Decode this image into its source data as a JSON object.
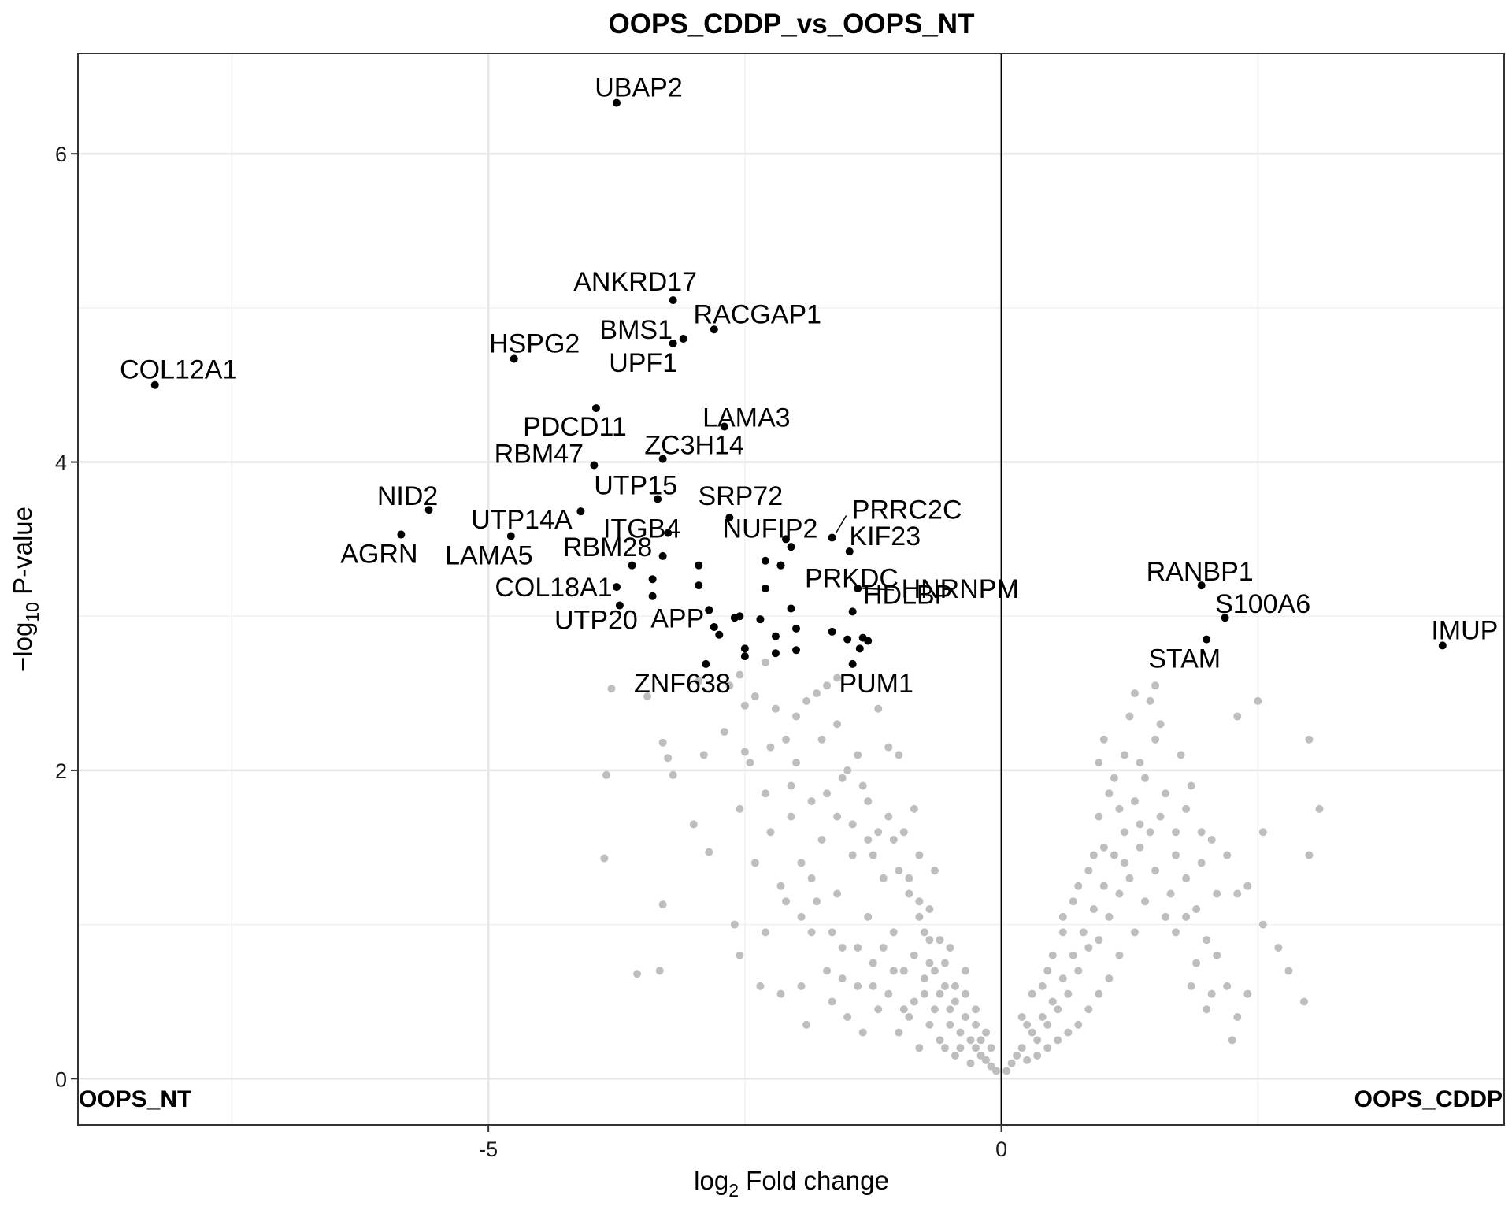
{
  "chart_data": {
    "type": "scatter",
    "title": "OOPS_CDDP_vs_OOPS_NT",
    "xlabel_prefix": "log",
    "xlabel_sub": "2",
    "xlabel_suffix": " Fold change",
    "ylabel_prefix": "−log",
    "ylabel_sub": "10",
    "ylabel_suffix": " P-value",
    "xlim": [
      -9.0,
      4.9
    ],
    "ylim": [
      -0.3,
      6.65
    ],
    "x_ticks": [
      -5,
      0
    ],
    "y_ticks": [
      0,
      2,
      4,
      6
    ],
    "x_tick_labels": [
      "-5",
      "0"
    ],
    "y_tick_labels": [
      "0",
      "2",
      "4",
      "6"
    ],
    "grid": true,
    "vline_x": 0,
    "corner_left": "OOPS_NT",
    "corner_right": "OOPS_CDDP",
    "colors": {
      "significant": "#000000",
      "background": "#bebebe"
    },
    "labeled_points": [
      {
        "label": "UBAP2",
        "x": -3.75,
        "y": 6.33
      },
      {
        "label": "ANKRD17",
        "x": -3.2,
        "y": 5.05
      },
      {
        "label": "RACGAP1",
        "x": -2.8,
        "y": 4.86
      },
      {
        "label": "BMS1",
        "x": -3.1,
        "y": 4.8
      },
      {
        "label": "UPF1",
        "x": -3.2,
        "y": 4.77
      },
      {
        "label": "HSPG2",
        "x": -4.75,
        "y": 4.67
      },
      {
        "label": "COL12A1",
        "x": -8.25,
        "y": 4.5
      },
      {
        "label": "PDCD11",
        "x": -3.95,
        "y": 4.35
      },
      {
        "label": "LAMA3",
        "x": -2.7,
        "y": 4.23
      },
      {
        "label": "ZC3H14",
        "x": -3.3,
        "y": 4.02
      },
      {
        "label": "RBM47",
        "x": -3.97,
        "y": 3.98
      },
      {
        "label": "UTP15",
        "x": -3.35,
        "y": 3.76
      },
      {
        "label": "NID2",
        "x": -5.58,
        "y": 3.69
      },
      {
        "label": "UTP14A",
        "x": -4.1,
        "y": 3.68
      },
      {
        "label": "SRP72",
        "x": -2.65,
        "y": 3.64
      },
      {
        "label": "ITGB4",
        "x": -3.25,
        "y": 3.54
      },
      {
        "label": "PRRC2C",
        "x": -1.65,
        "y": 3.51
      },
      {
        "label": "AGRN",
        "x": -5.85,
        "y": 3.53
      },
      {
        "label": "LAMA5",
        "x": -4.78,
        "y": 3.52
      },
      {
        "label": "NUFIP2",
        "x": -2.1,
        "y": 3.5
      },
      {
        "label": "KIF23",
        "x": -1.48,
        "y": 3.42
      },
      {
        "label": "RBM28",
        "x": -3.3,
        "y": 3.39
      },
      {
        "label": "PRKDC",
        "x": -2.15,
        "y": 3.33
      },
      {
        "label": "COL18A1",
        "x": -3.75,
        "y": 3.19
      },
      {
        "label": "HNRNPM",
        "x": -1.4,
        "y": 3.18
      },
      {
        "label": "UTP20",
        "x": -3.72,
        "y": 3.07
      },
      {
        "label": "APP",
        "x": -2.85,
        "y": 3.04
      },
      {
        "label": "HDLBP",
        "x": -1.45,
        "y": 3.03
      },
      {
        "label": "ZNF638",
        "x": -2.88,
        "y": 2.69
      },
      {
        "label": "PUM1",
        "x": -1.45,
        "y": 2.69
      },
      {
        "label": "RANBP1",
        "x": 1.95,
        "y": 3.2
      },
      {
        "label": "S100A6",
        "x": 2.18,
        "y": 2.99
      },
      {
        "label": "STAM",
        "x": 2.0,
        "y": 2.85
      },
      {
        "label": "IMUP",
        "x": 4.3,
        "y": 2.81
      }
    ],
    "significant_points": [
      [
        -3.6,
        3.33
      ],
      [
        -2.95,
        3.33
      ],
      [
        -3.4,
        3.24
      ],
      [
        -2.95,
        3.2
      ],
      [
        -2.3,
        3.18
      ],
      [
        -3.4,
        3.13
      ],
      [
        -2.3,
        3.36
      ],
      [
        -2.15,
        3.33
      ],
      [
        -2.05,
        3.45
      ],
      [
        -2.85,
        3.04
      ],
      [
        -2.55,
        3.0
      ],
      [
        -2.6,
        2.99
      ],
      [
        -2.35,
        2.98
      ],
      [
        -2.05,
        3.05
      ],
      [
        -1.65,
        2.9
      ],
      [
        -2.8,
        2.93
      ],
      [
        -2.75,
        2.88
      ],
      [
        -2.0,
        2.92
      ],
      [
        -2.2,
        2.87
      ],
      [
        -1.35,
        2.86
      ],
      [
        -1.3,
        2.84
      ],
      [
        -1.5,
        2.85
      ],
      [
        -2.5,
        2.79
      ],
      [
        -2.0,
        2.78
      ],
      [
        -2.2,
        2.76
      ],
      [
        -2.5,
        2.74
      ],
      [
        -1.38,
        2.79
      ]
    ],
    "background_points": [
      [
        -3.8,
        2.53
      ],
      [
        -3.85,
        1.97
      ],
      [
        -3.87,
        1.43
      ],
      [
        -3.3,
        2.18
      ],
      [
        -3.25,
        2.08
      ],
      [
        -3.2,
        1.97
      ],
      [
        -3.3,
        1.13
      ],
      [
        -3.33,
        0.7
      ],
      [
        -3.55,
        0.68
      ],
      [
        -3.0,
        1.65
      ],
      [
        -2.85,
        1.47
      ],
      [
        -2.5,
        2.42
      ],
      [
        -2.4,
        2.48
      ],
      [
        -2.55,
        2.62
      ],
      [
        -2.5,
        2.12
      ],
      [
        -2.55,
        1.75
      ],
      [
        -2.3,
        1.85
      ],
      [
        -2.6,
        1.0
      ],
      [
        -2.55,
        0.8
      ],
      [
        -2.35,
        0.6
      ],
      [
        -2.2,
        2.4
      ],
      [
        -2.1,
        2.2
      ],
      [
        -2.0,
        2.35
      ],
      [
        -2.05,
        1.9
      ],
      [
        -1.95,
        1.4
      ],
      [
        -2.15,
        0.55
      ],
      [
        -1.95,
        0.6
      ],
      [
        -1.8,
        2.5
      ],
      [
        -1.7,
        2.55
      ],
      [
        -1.75,
        2.2
      ],
      [
        -1.6,
        2.3
      ],
      [
        -1.5,
        2.0
      ],
      [
        -1.4,
        2.1
      ],
      [
        -1.3,
        1.8
      ],
      [
        -1.2,
        2.4
      ],
      [
        -1.1,
        2.15
      ],
      [
        -1.0,
        2.1
      ],
      [
        -0.95,
        1.6
      ],
      [
        -0.9,
        1.2
      ],
      [
        -0.8,
        1.45
      ],
      [
        -0.7,
        1.1
      ],
      [
        -0.6,
        0.9
      ],
      [
        -1.75,
        1.55
      ],
      [
        -1.6,
        1.2
      ],
      [
        -1.45,
        1.45
      ],
      [
        -1.3,
        1.05
      ],
      [
        -1.15,
        1.3
      ],
      [
        -1.05,
        0.95
      ],
      [
        -1.85,
        0.95
      ],
      [
        -1.7,
        0.7
      ],
      [
        -1.55,
        0.85
      ],
      [
        -1.4,
        0.6
      ],
      [
        -1.25,
        0.75
      ],
      [
        -1.1,
        0.55
      ],
      [
        -0.95,
        0.7
      ],
      [
        -0.85,
        0.5
      ],
      [
        -0.75,
        0.65
      ],
      [
        -0.65,
        0.45
      ],
      [
        -0.55,
        0.6
      ],
      [
        -0.5,
        0.35
      ],
      [
        -0.45,
        0.5
      ],
      [
        -0.4,
        0.3
      ],
      [
        -0.35,
        0.4
      ],
      [
        -0.3,
        0.25
      ],
      [
        -0.25,
        0.2
      ],
      [
        -0.2,
        0.15
      ],
      [
        -0.15,
        0.12
      ],
      [
        -0.1,
        0.08
      ],
      [
        -0.05,
        0.05
      ],
      [
        -0.6,
        0.25
      ],
      [
        -0.7,
        0.35
      ],
      [
        -0.8,
        0.2
      ],
      [
        -0.9,
        0.4
      ],
      [
        -1.0,
        0.3
      ],
      [
        -1.2,
        0.45
      ],
      [
        -1.35,
        0.3
      ],
      [
        -1.5,
        0.4
      ],
      [
        -1.65,
        0.5
      ],
      [
        -1.9,
        0.35
      ],
      [
        -0.35,
        0.7
      ],
      [
        -0.5,
        0.85
      ],
      [
        -0.65,
        1.35
      ],
      [
        -0.75,
        0.95
      ],
      [
        -0.85,
        1.75
      ],
      [
        -1.1,
        1.7
      ],
      [
        -1.3,
        1.55
      ],
      [
        -1.6,
        1.7
      ],
      [
        -1.85,
        1.3
      ],
      [
        -2.1,
        1.15
      ],
      [
        -2.3,
        0.95
      ],
      [
        -0.25,
        0.45
      ],
      [
        -0.15,
        0.3
      ],
      [
        -0.45,
        0.15
      ],
      [
        -0.55,
        0.2
      ],
      [
        -0.3,
        0.1
      ],
      [
        0.05,
        0.05
      ],
      [
        0.1,
        0.1
      ],
      [
        0.15,
        0.15
      ],
      [
        0.2,
        0.2
      ],
      [
        0.25,
        0.12
      ],
      [
        0.3,
        0.3
      ],
      [
        0.35,
        0.25
      ],
      [
        0.4,
        0.4
      ],
      [
        0.45,
        0.35
      ],
      [
        0.5,
        0.5
      ],
      [
        0.55,
        0.45
      ],
      [
        0.6,
        0.65
      ],
      [
        0.65,
        0.55
      ],
      [
        0.7,
        0.8
      ],
      [
        0.75,
        0.7
      ],
      [
        0.8,
        0.95
      ],
      [
        0.85,
        0.85
      ],
      [
        0.9,
        1.1
      ],
      [
        0.95,
        0.9
      ],
      [
        1.0,
        1.25
      ],
      [
        1.05,
        1.05
      ],
      [
        1.1,
        1.45
      ],
      [
        1.15,
        1.2
      ],
      [
        1.2,
        1.6
      ],
      [
        1.25,
        1.3
      ],
      [
        1.3,
        1.8
      ],
      [
        1.35,
        1.5
      ],
      [
        1.4,
        1.95
      ],
      [
        1.45,
        1.6
      ],
      [
        1.5,
        2.2
      ],
      [
        1.55,
        1.7
      ],
      [
        1.6,
        1.85
      ],
      [
        1.7,
        1.45
      ],
      [
        1.8,
        1.3
      ],
      [
        1.9,
        1.1
      ],
      [
        2.0,
        0.9
      ],
      [
        2.1,
        0.8
      ],
      [
        2.2,
        0.6
      ],
      [
        2.3,
        0.4
      ],
      [
        0.95,
        1.7
      ],
      [
        1.1,
        1.95
      ],
      [
        1.2,
        2.1
      ],
      [
        1.25,
        2.35
      ],
      [
        1.3,
        2.5
      ],
      [
        1.45,
        2.45
      ],
      [
        1.5,
        2.55
      ],
      [
        1.0,
        2.2
      ],
      [
        0.95,
        2.05
      ],
      [
        1.75,
        2.1
      ],
      [
        1.85,
        1.9
      ],
      [
        1.95,
        1.6
      ],
      [
        2.05,
        1.55
      ],
      [
        2.2,
        1.45
      ],
      [
        2.3,
        1.2
      ],
      [
        2.4,
        1.25
      ],
      [
        2.55,
        1.0
      ],
      [
        2.7,
        0.85
      ],
      [
        2.8,
        0.7
      ],
      [
        2.95,
        0.5
      ],
      [
        2.3,
        2.35
      ],
      [
        2.5,
        2.45
      ],
      [
        3.0,
        2.2
      ],
      [
        3.1,
        1.75
      ],
      [
        3.0,
        1.45
      ],
      [
        2.55,
        1.6
      ],
      [
        2.25,
        0.25
      ],
      [
        2.4,
        0.55
      ],
      [
        2.0,
        0.45
      ],
      [
        1.85,
        0.6
      ],
      [
        1.7,
        0.95
      ],
      [
        1.6,
        1.05
      ],
      [
        1.4,
        1.15
      ],
      [
        1.3,
        0.95
      ],
      [
        1.15,
        0.8
      ],
      [
        1.05,
        0.65
      ],
      [
        0.95,
        0.55
      ],
      [
        0.85,
        0.45
      ],
      [
        0.75,
        0.35
      ],
      [
        0.65,
        0.3
      ],
      [
        0.55,
        0.25
      ],
      [
        0.45,
        0.2
      ],
      [
        0.35,
        0.15
      ],
      [
        0.3,
        0.55
      ],
      [
        0.45,
        0.7
      ],
      [
        0.6,
        0.95
      ],
      [
        0.7,
        1.15
      ],
      [
        0.85,
        1.35
      ],
      [
        1.0,
        1.5
      ],
      [
        1.15,
        1.75
      ],
      [
        1.35,
        2.05
      ],
      [
        1.55,
        2.3
      ],
      [
        1.7,
        1.6
      ],
      [
        1.8,
        1.75
      ],
      [
        1.95,
        1.4
      ],
      [
        2.1,
        1.2
      ],
      [
        0.2,
        0.4
      ],
      [
        0.25,
        0.35
      ],
      [
        0.4,
        0.6
      ],
      [
        0.5,
        0.8
      ],
      [
        0.6,
        1.05
      ],
      [
        0.75,
        1.25
      ],
      [
        0.9,
        1.45
      ],
      [
        1.05,
        1.85
      ],
      [
        1.2,
        1.4
      ],
      [
        1.35,
        1.65
      ],
      [
        1.5,
        1.35
      ],
      [
        1.65,
        1.2
      ],
      [
        1.8,
        1.05
      ],
      [
        1.9,
        0.75
      ],
      [
        2.05,
        0.55
      ],
      [
        -3.45,
        2.48
      ],
      [
        -2.95,
        2.58
      ],
      [
        -2.65,
        2.55
      ],
      [
        -2.3,
        2.7
      ],
      [
        -1.6,
        2.6
      ],
      [
        -1.9,
        2.45
      ],
      [
        -2.05,
        1.7
      ],
      [
        -1.85,
        1.8
      ],
      [
        -1.45,
        1.65
      ],
      [
        -1.25,
        1.45
      ],
      [
        -1.0,
        1.35
      ],
      [
        -0.8,
        1.05
      ],
      [
        -0.7,
        0.75
      ],
      [
        -0.6,
        0.55
      ],
      [
        -0.5,
        0.45
      ],
      [
        -0.4,
        0.2
      ],
      [
        -0.35,
        0.55
      ],
      [
        -0.25,
        0.35
      ],
      [
        -0.2,
        0.25
      ],
      [
        -0.1,
        0.2
      ],
      [
        -2.4,
        1.4
      ],
      [
        -2.25,
        1.6
      ],
      [
        -2.15,
        1.25
      ],
      [
        -1.95,
        1.05
      ],
      [
        -1.8,
        1.15
      ],
      [
        -1.65,
        0.95
      ],
      [
        -1.55,
        0.65
      ],
      [
        -1.4,
        0.85
      ],
      [
        -1.25,
        0.6
      ],
      [
        -1.15,
        0.85
      ],
      [
        -1.05,
        0.7
      ],
      [
        -0.95,
        0.45
      ],
      [
        -0.85,
        0.8
      ],
      [
        -0.75,
        0.55
      ],
      [
        -0.65,
        0.7
      ],
      [
        -1.7,
        1.85
      ],
      [
        -1.55,
        1.95
      ],
      [
        -1.35,
        1.9
      ],
      [
        -1.2,
        1.6
      ],
      [
        -1.05,
        1.55
      ],
      [
        -0.9,
        1.3
      ],
      [
        -0.8,
        1.15
      ],
      [
        -0.7,
        0.9
      ],
      [
        -0.55,
        0.75
      ],
      [
        -0.45,
        0.6
      ],
      [
        -2.7,
        2.25
      ],
      [
        -2.9,
        2.1
      ],
      [
        -2.45,
        2.05
      ],
      [
        -2.25,
        2.15
      ],
      [
        -2.0,
        2.05
      ]
    ]
  }
}
